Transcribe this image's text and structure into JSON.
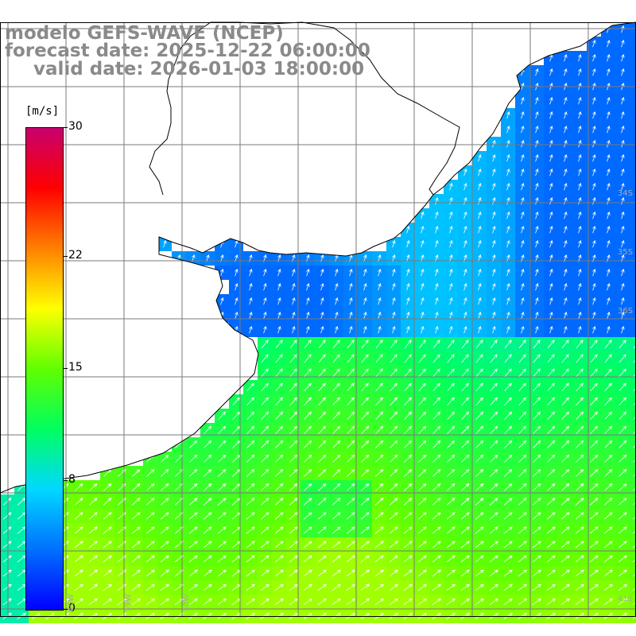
{
  "title": {
    "line1": "modelo GEFS-WAVE (NCEP)",
    "line2": "forecast date: 2025-12-22 06:00:00",
    "line3": "valid date: 2026-01-03 18:00:00"
  },
  "colorbar": {
    "unit": "[m/s]",
    "min": 0,
    "max": 30,
    "ticks": [
      {
        "label": "30",
        "value": 30
      },
      {
        "label": "22",
        "value": 22
      },
      {
        "label": "15",
        "value": 15
      },
      {
        "label": "8",
        "value": 8
      },
      {
        "label": "0",
        "value": 0
      }
    ],
    "colors": [
      "#0000ff",
      "#0070ff",
      "#00d8ff",
      "#00ff60",
      "#60ff00",
      "#ffff00",
      "#ff8000",
      "#ff0000",
      "#c8006e"
    ]
  },
  "lat_labels": [
    "34S",
    "35S",
    "36S",
    "41S"
  ],
  "lon_labels": [
    "60W",
    "59W",
    "58W"
  ],
  "colors": {
    "land": "#ffffff",
    "grid": "#7a7a7a",
    "coast": "#000000",
    "arrow": "#ffffff"
  }
}
